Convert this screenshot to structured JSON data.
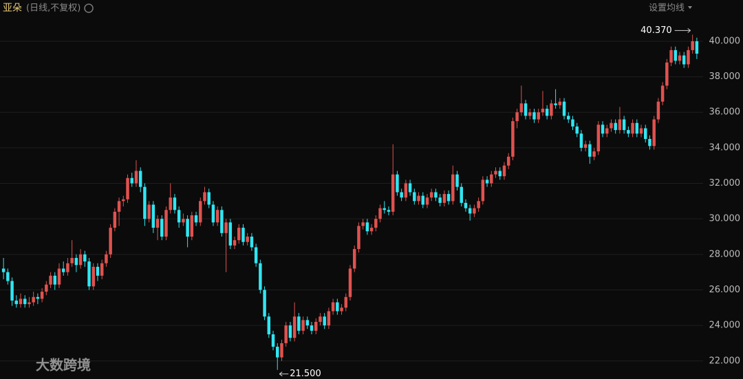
{
  "chart_data": {
    "type": "candlestick",
    "title": "亚朵",
    "subtitle": "(日线,不复权)",
    "menu": "设置均线",
    "watermark": "大数跨境",
    "up_color": "#e0524f",
    "down_color": "#30e6f2",
    "grid": true,
    "ylim": [
      21.1,
      41.16
    ],
    "yticks": [
      {
        "value": 22,
        "label": "22.000"
      },
      {
        "value": 24,
        "label": "24.000"
      },
      {
        "value": 26,
        "label": "26.000"
      },
      {
        "value": 28,
        "label": "28.000"
      },
      {
        "value": 30,
        "label": "30.000"
      },
      {
        "value": 32,
        "label": "32.000"
      },
      {
        "value": 34,
        "label": "34.000"
      },
      {
        "value": 36,
        "label": "36.000"
      },
      {
        "value": 38,
        "label": "38.000"
      },
      {
        "value": 40,
        "label": "40.000"
      }
    ],
    "annotations": [
      {
        "value": 40.37,
        "label": "40.370"
      },
      {
        "value": 21.5,
        "label": "21.500"
      }
    ],
    "candles": [
      [
        27.2,
        27.8,
        26.6,
        27.0
      ],
      [
        27.0,
        27.2,
        26.3,
        26.5
      ],
      [
        26.5,
        26.7,
        25.1,
        25.4
      ],
      [
        25.4,
        25.7,
        25.0,
        25.2
      ],
      [
        25.2,
        25.8,
        25.0,
        25.5
      ],
      [
        25.5,
        25.7,
        25.0,
        25.2
      ],
      [
        25.2,
        25.6,
        25.0,
        25.3
      ],
      [
        25.3,
        25.9,
        25.1,
        25.6
      ],
      [
        25.6,
        25.8,
        25.2,
        25.5
      ],
      [
        25.5,
        26.1,
        25.3,
        25.9
      ],
      [
        25.9,
        26.5,
        25.7,
        26.3
      ],
      [
        26.3,
        27.0,
        26.1,
        26.8
      ],
      [
        26.8,
        27.0,
        26.0,
        26.3
      ],
      [
        26.3,
        27.5,
        26.1,
        27.2
      ],
      [
        27.2,
        27.6,
        26.8,
        27.0
      ],
      [
        27.0,
        27.8,
        26.8,
        27.5
      ],
      [
        27.5,
        28.8,
        27.3,
        27.8
      ],
      [
        27.8,
        28.0,
        27.0,
        27.4
      ],
      [
        27.4,
        28.3,
        27.2,
        28.0
      ],
      [
        28.0,
        28.2,
        27.3,
        27.6
      ],
      [
        27.6,
        27.8,
        26.0,
        26.2
      ],
      [
        26.2,
        27.5,
        26.0,
        27.3
      ],
      [
        27.3,
        27.5,
        26.5,
        26.8
      ],
      [
        26.8,
        27.7,
        26.6,
        27.5
      ],
      [
        27.5,
        28.2,
        27.3,
        28.0
      ],
      [
        28.0,
        29.7,
        27.8,
        29.5
      ],
      [
        29.5,
        30.6,
        29.3,
        30.4
      ],
      [
        30.4,
        31.2,
        29.6,
        31.0
      ],
      [
        31.0,
        31.3,
        30.7,
        31.1
      ],
      [
        31.1,
        32.5,
        30.9,
        32.3
      ],
      [
        32.3,
        32.6,
        31.8,
        32.0
      ],
      [
        32.0,
        33.3,
        31.8,
        32.7
      ],
      [
        32.7,
        32.9,
        31.5,
        31.8
      ],
      [
        31.8,
        32.0,
        29.6,
        30.0
      ],
      [
        30.0,
        31.0,
        29.8,
        30.8
      ],
      [
        30.8,
        31.0,
        29.2,
        29.5
      ],
      [
        29.5,
        30.2,
        28.8,
        30.0
      ],
      [
        30.0,
        30.2,
        28.8,
        29.0
      ],
      [
        29.0,
        30.7,
        28.8,
        30.5
      ],
      [
        30.5,
        32.0,
        30.3,
        31.2
      ],
      [
        31.2,
        31.4,
        30.3,
        30.5
      ],
      [
        30.5,
        30.7,
        29.5,
        29.8
      ],
      [
        29.8,
        30.3,
        29.6,
        30.0
      ],
      [
        30.0,
        30.2,
        28.4,
        29.0
      ],
      [
        29.0,
        30.4,
        28.8,
        30.2
      ],
      [
        30.2,
        30.4,
        29.6,
        29.8
      ],
      [
        29.8,
        31.2,
        29.6,
        31.0
      ],
      [
        31.0,
        31.8,
        30.8,
        31.5
      ],
      [
        31.5,
        31.7,
        30.6,
        30.8
      ],
      [
        30.8,
        31.0,
        29.6,
        29.8
      ],
      [
        29.8,
        30.7,
        29.6,
        30.5
      ],
      [
        30.5,
        30.7,
        29.0,
        29.2
      ],
      [
        29.2,
        30.0,
        27.0,
        29.8
      ],
      [
        29.8,
        30.0,
        28.3,
        28.5
      ],
      [
        28.5,
        29.0,
        28.3,
        28.8
      ],
      [
        28.8,
        29.7,
        28.6,
        29.5
      ],
      [
        29.5,
        29.7,
        28.5,
        28.7
      ],
      [
        28.7,
        29.2,
        28.5,
        29.0
      ],
      [
        29.0,
        29.2,
        28.2,
        28.4
      ],
      [
        28.4,
        28.6,
        27.3,
        27.5
      ],
      [
        27.5,
        27.7,
        25.8,
        26.0
      ],
      [
        26.0,
        26.2,
        24.3,
        24.5
      ],
      [
        24.5,
        24.7,
        23.3,
        23.5
      ],
      [
        23.5,
        23.7,
        22.6,
        22.8
      ],
      [
        22.8,
        23.0,
        21.5,
        22.2
      ],
      [
        22.2,
        23.2,
        22.0,
        23.0
      ],
      [
        23.0,
        24.2,
        22.8,
        24.0
      ],
      [
        24.0,
        24.2,
        23.1,
        23.3
      ],
      [
        23.3,
        25.3,
        23.1,
        24.5
      ],
      [
        24.5,
        24.7,
        23.5,
        23.7
      ],
      [
        23.7,
        24.5,
        23.5,
        24.3
      ],
      [
        24.3,
        24.5,
        23.8,
        24.0
      ],
      [
        24.0,
        24.2,
        23.5,
        23.7
      ],
      [
        23.7,
        24.4,
        23.5,
        24.2
      ],
      [
        24.2,
        24.7,
        24.0,
        24.5
      ],
      [
        24.5,
        24.7,
        23.8,
        24.0
      ],
      [
        24.0,
        25.0,
        23.8,
        24.8
      ],
      [
        24.8,
        25.5,
        24.6,
        25.3
      ],
      [
        25.3,
        25.5,
        24.6,
        24.8
      ],
      [
        24.8,
        25.2,
        24.6,
        25.0
      ],
      [
        25.0,
        25.8,
        24.8,
        25.6
      ],
      [
        25.6,
        27.4,
        25.4,
        27.2
      ],
      [
        27.2,
        28.5,
        27.0,
        28.3
      ],
      [
        28.3,
        29.8,
        28.1,
        29.6
      ],
      [
        29.6,
        30.0,
        29.4,
        29.8
      ],
      [
        29.8,
        30.0,
        29.1,
        29.3
      ],
      [
        29.3,
        29.7,
        29.1,
        29.5
      ],
      [
        29.5,
        30.2,
        29.3,
        30.0
      ],
      [
        30.0,
        30.8,
        29.8,
        30.6
      ],
      [
        30.6,
        31.0,
        30.3,
        30.5
      ],
      [
        30.5,
        30.7,
        30.2,
        30.4
      ],
      [
        30.4,
        34.2,
        30.2,
        32.5
      ],
      [
        32.5,
        32.7,
        31.3,
        31.5
      ],
      [
        31.5,
        31.7,
        31.0,
        31.2
      ],
      [
        31.2,
        32.2,
        31.0,
        32.0
      ],
      [
        32.0,
        32.2,
        31.3,
        31.5
      ],
      [
        31.5,
        31.7,
        30.8,
        31.0
      ],
      [
        31.0,
        31.5,
        30.8,
        31.3
      ],
      [
        31.3,
        31.5,
        30.6,
        30.8
      ],
      [
        30.8,
        31.4,
        30.6,
        31.2
      ],
      [
        31.2,
        31.7,
        31.0,
        31.5
      ],
      [
        31.5,
        31.7,
        31.0,
        31.2
      ],
      [
        31.2,
        31.4,
        30.7,
        30.9
      ],
      [
        30.9,
        31.6,
        30.7,
        31.4
      ],
      [
        31.4,
        31.6,
        30.8,
        31.0
      ],
      [
        31.0,
        33.0,
        30.8,
        32.5
      ],
      [
        32.5,
        32.7,
        31.6,
        31.8
      ],
      [
        31.8,
        32.0,
        30.7,
        30.9
      ],
      [
        30.9,
        31.1,
        30.4,
        30.6
      ],
      [
        30.6,
        30.8,
        29.9,
        30.3
      ],
      [
        30.3,
        30.8,
        30.1,
        30.6
      ],
      [
        30.6,
        31.2,
        30.4,
        31.0
      ],
      [
        31.0,
        32.4,
        30.8,
        32.2
      ],
      [
        32.2,
        32.4,
        31.8,
        32.0
      ],
      [
        32.0,
        32.7,
        31.8,
        32.5
      ],
      [
        32.5,
        32.9,
        32.3,
        32.7
      ],
      [
        32.7,
        32.9,
        32.2,
        32.4
      ],
      [
        32.4,
        33.2,
        32.2,
        33.0
      ],
      [
        33.0,
        33.7,
        32.8,
        33.5
      ],
      [
        33.5,
        35.7,
        33.3,
        35.5
      ],
      [
        35.5,
        36.2,
        35.1,
        36.0
      ],
      [
        36.0,
        37.5,
        35.8,
        36.5
      ],
      [
        36.5,
        36.7,
        35.6,
        35.8
      ],
      [
        35.8,
        36.2,
        35.6,
        36.0
      ],
      [
        36.0,
        36.2,
        35.4,
        35.6
      ],
      [
        35.6,
        36.2,
        35.4,
        36.0
      ],
      [
        36.0,
        37.2,
        35.8,
        36.2
      ],
      [
        36.2,
        36.4,
        35.6,
        35.8
      ],
      [
        35.8,
        36.7,
        35.6,
        36.5
      ],
      [
        36.5,
        37.3,
        36.2,
        36.4
      ],
      [
        36.4,
        36.8,
        36.2,
        36.6
      ],
      [
        36.6,
        36.8,
        35.6,
        35.8
      ],
      [
        35.8,
        36.0,
        35.4,
        35.6
      ],
      [
        35.6,
        35.8,
        35.0,
        35.2
      ],
      [
        35.2,
        35.4,
        34.6,
        34.8
      ],
      [
        34.8,
        35.0,
        33.8,
        34.0
      ],
      [
        34.0,
        34.4,
        33.8,
        34.2
      ],
      [
        34.2,
        34.4,
        33.1,
        33.5
      ],
      [
        33.5,
        34.0,
        33.3,
        33.8
      ],
      [
        33.8,
        35.5,
        33.6,
        35.3
      ],
      [
        35.3,
        35.5,
        34.6,
        34.8
      ],
      [
        34.8,
        35.3,
        34.6,
        35.1
      ],
      [
        35.1,
        35.6,
        34.9,
        35.4
      ],
      [
        35.4,
        35.6,
        34.8,
        35.0
      ],
      [
        35.0,
        36.3,
        34.8,
        35.6
      ],
      [
        35.6,
        35.8,
        34.8,
        35.0
      ],
      [
        35.0,
        35.2,
        34.6,
        34.8
      ],
      [
        34.8,
        35.6,
        34.6,
        35.4
      ],
      [
        35.4,
        35.6,
        34.6,
        34.8
      ],
      [
        34.8,
        35.3,
        34.6,
        35.1
      ],
      [
        35.1,
        35.3,
        34.3,
        34.5
      ],
      [
        34.5,
        34.7,
        33.9,
        34.1
      ],
      [
        34.1,
        35.8,
        33.9,
        35.6
      ],
      [
        35.6,
        36.8,
        35.4,
        36.6
      ],
      [
        36.6,
        37.7,
        36.4,
        37.5
      ],
      [
        37.5,
        39.0,
        37.3,
        38.8
      ],
      [
        38.8,
        39.7,
        38.6,
        39.5
      ],
      [
        39.5,
        39.7,
        38.7,
        38.9
      ],
      [
        38.9,
        39.4,
        38.7,
        39.2
      ],
      [
        39.2,
        39.4,
        38.5,
        38.7
      ],
      [
        38.7,
        39.7,
        38.5,
        39.5
      ],
      [
        39.5,
        40.37,
        39.3,
        40.0
      ],
      [
        40.0,
        40.2,
        39.0,
        39.3
      ]
    ]
  }
}
